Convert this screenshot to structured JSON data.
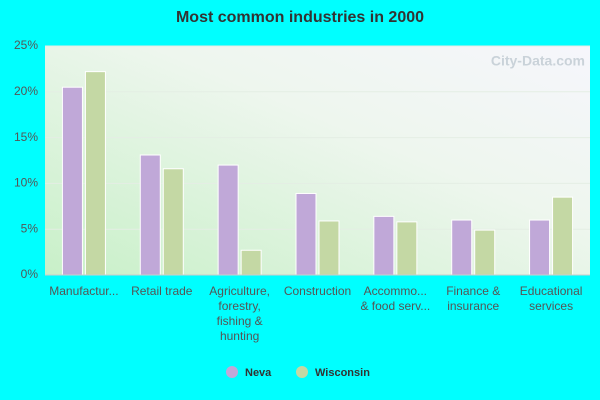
{
  "chart_data": {
    "type": "bar",
    "title": "Most common industries in 2000",
    "watermark": "City-Data.com",
    "categories": [
      [
        "Manufactur..."
      ],
      [
        "Retail trade"
      ],
      [
        "Agriculture,",
        "forestry,",
        "fishing &",
        "hunting"
      ],
      [
        "Construction"
      ],
      [
        "Accommo...",
        "& food serv..."
      ],
      [
        "Finance &",
        "insurance"
      ],
      [
        "Educational",
        "services"
      ]
    ],
    "series": [
      {
        "name": "Neva",
        "color": "#c0a8d8",
        "values": [
          20.5,
          13.1,
          12.0,
          8.9,
          6.4,
          6.0,
          6.0
        ]
      },
      {
        "name": "Wisconsin",
        "color": "#c4d8a4",
        "values": [
          22.2,
          11.6,
          2.7,
          5.9,
          5.8,
          4.9,
          8.5
        ]
      }
    ],
    "ylim": [
      0,
      25
    ],
    "yticks": [
      {
        "value": 0,
        "label": "0%"
      },
      {
        "value": 5,
        "label": "5%"
      },
      {
        "value": 10,
        "label": "10%"
      },
      {
        "value": 15,
        "label": "15%"
      },
      {
        "value": 20,
        "label": "20%"
      },
      {
        "value": 25,
        "label": "25%"
      }
    ],
    "grid": true
  }
}
